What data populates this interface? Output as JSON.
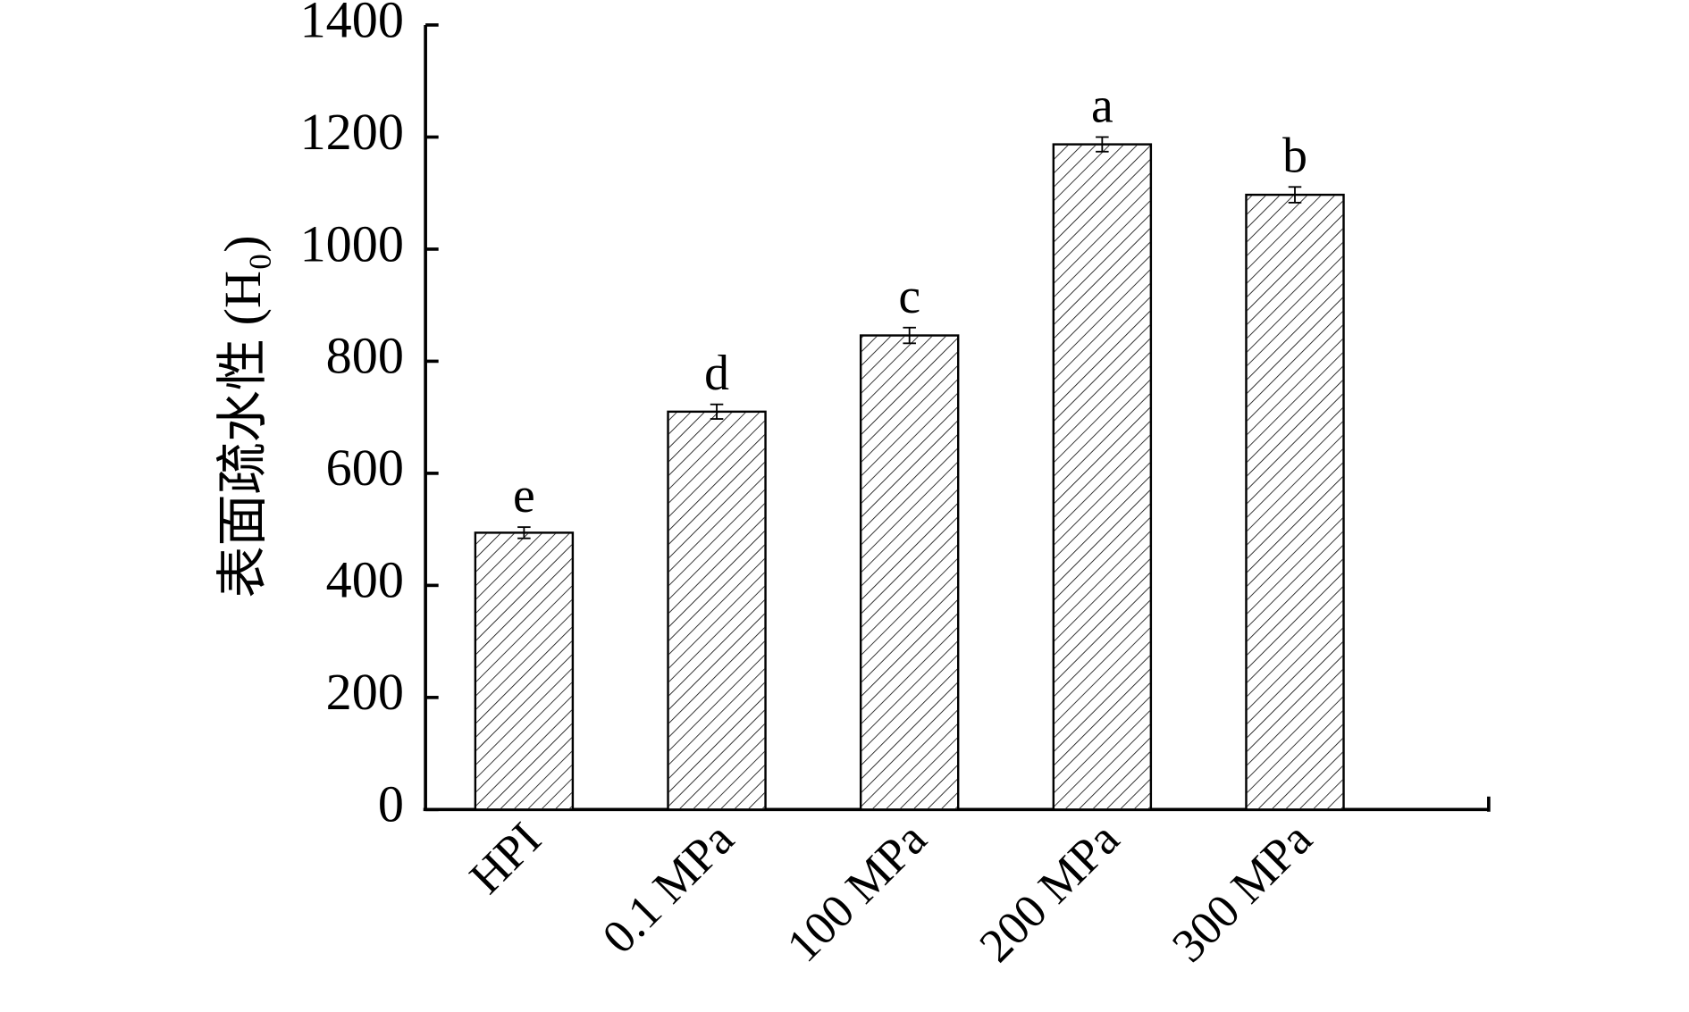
{
  "chart_data": {
    "type": "bar",
    "y_label": "表面疏水性 (H₀)",
    "categories": [
      "HPI",
      "0.1 MPa",
      "100 MPa",
      "200 MPa",
      "300 MPa"
    ],
    "values": [
      494,
      710,
      846,
      1187,
      1097
    ],
    "errors": [
      10,
      13,
      14,
      13,
      14
    ],
    "annotations": [
      "e",
      "d",
      "c",
      "a",
      "b"
    ],
    "ylim": [
      0,
      1400
    ],
    "yticks": [
      0,
      200,
      400,
      600,
      800,
      1000,
      1200,
      1400
    ],
    "color": "#ffffff",
    "hatch": true,
    "grid": false
  }
}
